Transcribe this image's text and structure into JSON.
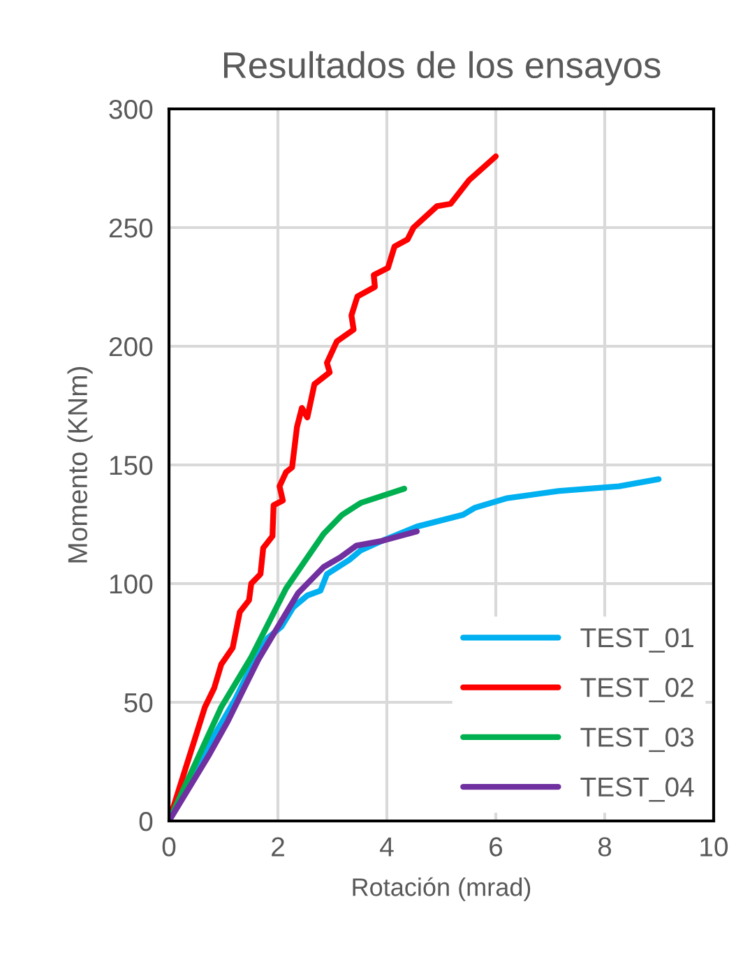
{
  "chart_data": {
    "type": "line",
    "title": "Resultados de los ensayos",
    "xlabel": "Rotación (mrad)",
    "ylabel": "Momento (KNm)",
    "xlim": [
      0,
      10
    ],
    "xticks": [
      0,
      2,
      4,
      6,
      8,
      10
    ],
    "ylim": [
      0,
      300
    ],
    "yticks": [
      0,
      50,
      100,
      150,
      200,
      250,
      300
    ],
    "grid": true,
    "legend": "bottom right",
    "marker": "none",
    "line_style": "solid",
    "series": [
      {
        "name": "TEST_01",
        "color": "#00b0f0",
        "x": [
          0,
          0.83,
          1.21,
          1.51,
          1.81,
          2.07,
          2.28,
          2.54,
          2.78,
          2.9,
          3.31,
          3.52,
          3.91,
          4.55,
          5.4,
          5.62,
          6.21,
          7.15,
          8.26,
          8.99
        ],
        "values": [
          0,
          36,
          51,
          65,
          77,
          82,
          90,
          95,
          97,
          104,
          110,
          114,
          118,
          124,
          129,
          132,
          136,
          139,
          141,
          144
        ]
      },
      {
        "name": "TEST_02",
        "color": "#ff0000",
        "x": [
          0,
          0.66,
          0.83,
          0.96,
          1.17,
          1.3,
          1.47,
          1.51,
          1.68,
          1.73,
          1.9,
          1.92,
          2.09,
          2.03,
          2.15,
          2.26,
          2.35,
          2.44,
          2.54,
          2.67,
          2.95,
          2.9,
          3.08,
          3.39,
          3.35,
          3.46,
          3.78,
          3.76,
          4.02,
          4.14,
          4.38,
          4.49,
          4.92,
          5.17,
          5.51,
          6.0
        ],
        "values": [
          0,
          48,
          56,
          66,
          73,
          88,
          93,
          100,
          104,
          115,
          120,
          133,
          135,
          141,
          147,
          149,
          166,
          174,
          170,
          184,
          189,
          193,
          202,
          207,
          213,
          221,
          225,
          230,
          233,
          242,
          245,
          250,
          259,
          260,
          270,
          280
        ]
      },
      {
        "name": "TEST_03",
        "color": "#00b050",
        "x": [
          0,
          0.96,
          1.51,
          2.15,
          2.84,
          3.18,
          3.52,
          4.32
        ],
        "values": [
          0,
          48,
          69,
          98,
          121,
          129,
          134,
          140
        ]
      },
      {
        "name": "TEST_04",
        "color": "#7030a0",
        "x": [
          0,
          0.74,
          1.08,
          1.38,
          1.64,
          2.03,
          2.37,
          2.84,
          3.14,
          3.44,
          3.91,
          4.55
        ],
        "values": [
          0,
          28,
          42,
          56,
          68,
          83,
          96,
          107,
          111,
          116,
          118,
          122
        ]
      }
    ]
  }
}
